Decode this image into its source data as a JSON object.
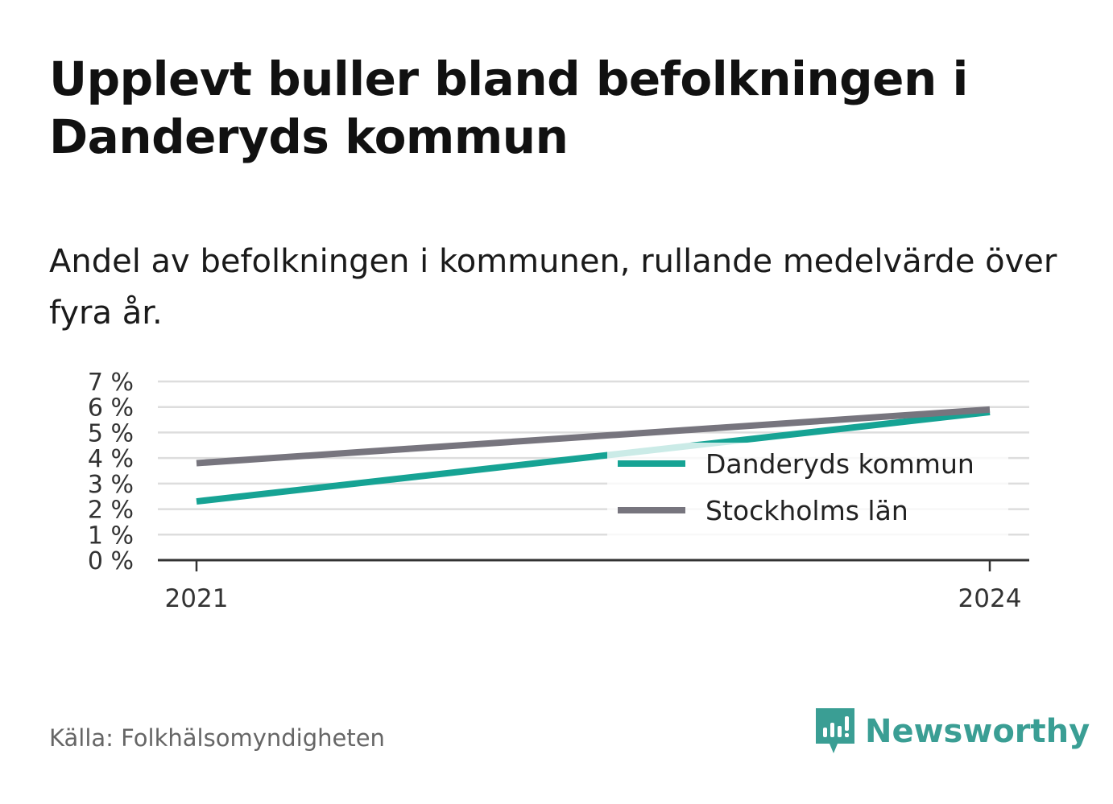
{
  "title": "Upplevt buller bland befolkningen i Danderyds kommun",
  "subtitle": "Andel av befolkningen i kommunen, rullande medelvärde över fyra år.",
  "source": "Källa: Folkhälsomyndigheten",
  "brand": {
    "name": "Newsworthy",
    "icon": "newsworthy-logo-icon",
    "color": "#3a9e94"
  },
  "chart_data": {
    "type": "line",
    "x": [
      2021,
      2024
    ],
    "x_tick_labels": [
      "2021",
      "2024"
    ],
    "y_ticks": [
      0,
      1,
      2,
      3,
      4,
      5,
      6,
      7
    ],
    "y_tick_labels": [
      "0 %",
      "1 %",
      "2 %",
      "3 %",
      "4 %",
      "5 %",
      "6 %",
      "7 %"
    ],
    "ylim": [
      0,
      7
    ],
    "grid": true,
    "legend_position": "right",
    "series": [
      {
        "name": "Danderyds kommun",
        "values": [
          2.3,
          5.8
        ],
        "color": "#16a394"
      },
      {
        "name": "Stockholms län",
        "values": [
          3.8,
          5.9
        ],
        "color": "#77757e"
      }
    ]
  }
}
